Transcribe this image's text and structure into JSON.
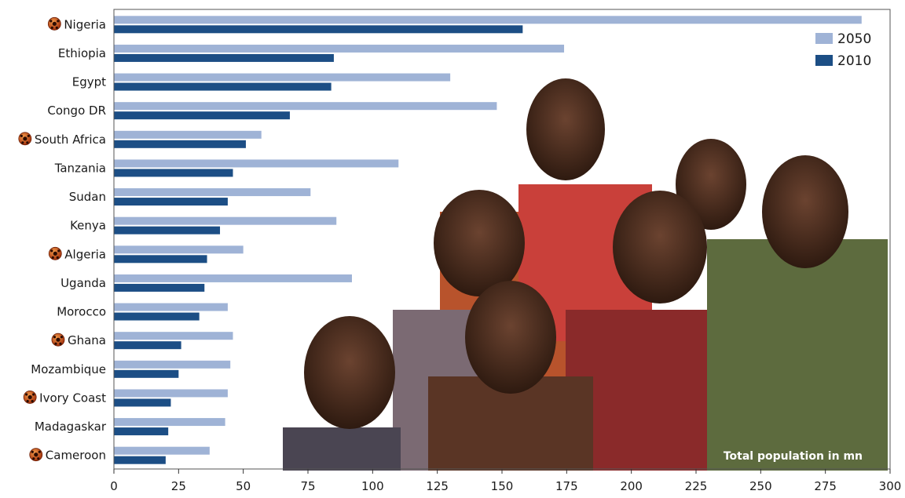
{
  "chart_data": {
    "type": "bar",
    "orientation": "horizontal",
    "categories": [
      "Nigeria",
      "Ethiopia",
      "Egypt",
      "Congo DR",
      "South Africa",
      "Tanzania",
      "Sudan",
      "Kenya",
      "Algeria",
      "Uganda",
      "Morocco",
      "Ghana",
      "Mozambique",
      "Ivory Coast",
      "Madagaskar",
      "Cameroon"
    ],
    "series": [
      {
        "name": "2050",
        "color": "#9fb3d6",
        "values": [
          289,
          174,
          130,
          148,
          57,
          110,
          76,
          86,
          50,
          92,
          44,
          46,
          45,
          44,
          43,
          37
        ]
      },
      {
        "name": "2010",
        "color": "#1c4e85",
        "values": [
          158,
          85,
          84,
          68,
          51,
          46,
          44,
          41,
          36,
          35,
          33,
          26,
          25,
          22,
          21,
          20
        ]
      }
    ],
    "football_marked": [
      "Nigeria",
      "South Africa",
      "Algeria",
      "Ghana",
      "Ivory Coast",
      "Cameroon"
    ],
    "marker_icon": "football-icon",
    "xlim": [
      0,
      300
    ],
    "xticks": [
      0,
      25,
      50,
      75,
      100,
      125,
      150,
      175,
      200,
      225,
      250,
      275,
      300
    ],
    "legend_position": "top-right",
    "annotation": "Total population in mn",
    "background_image": "photo-of-children"
  }
}
